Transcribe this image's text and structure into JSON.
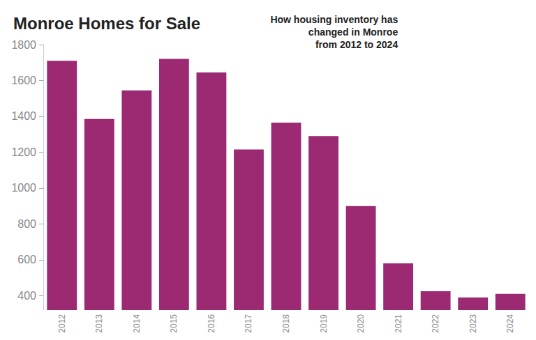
{
  "chart_data": {
    "type": "bar",
    "title": "Monroe Homes for Sale",
    "subtitle": "How housing inventory has\nchanged in Monroe\nfrom 2012 to 2024",
    "categories": [
      "2012",
      "2013",
      "2014",
      "2015",
      "2016",
      "2017",
      "2018",
      "2019",
      "2020",
      "2021",
      "2022",
      "2023",
      "2024"
    ],
    "values": [
      1710,
      1385,
      1545,
      1720,
      1645,
      1215,
      1365,
      1290,
      900,
      580,
      425,
      390,
      410
    ],
    "color": "#9b2a72",
    "ylim": [
      320,
      1800
    ],
    "yticks": [
      400,
      600,
      800,
      1000,
      1200,
      1400,
      1600,
      1800
    ],
    "grid": false
  }
}
